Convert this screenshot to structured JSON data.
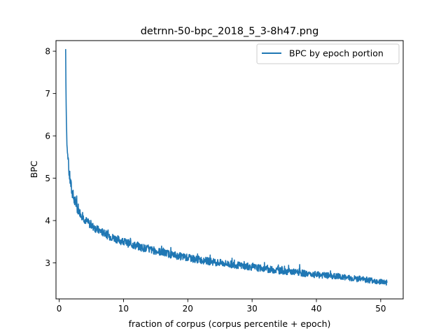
{
  "chart_data": {
    "type": "line",
    "title": "detrnn-50-bpc_2018_5_3-8h47.png",
    "xlabel": "fraction of corpus (corpus percentile + epoch)",
    "ylabel": "BPC",
    "xlim": [
      -0.5,
      53.5
    ],
    "ylim": [
      2.15,
      8.25
    ],
    "xticks": [
      0,
      10,
      20,
      30,
      40,
      50
    ],
    "yticks": [
      3,
      4,
      5,
      6,
      7,
      8
    ],
    "grid": false,
    "legend_position": "upper right",
    "series": [
      {
        "name": "BPC by epoch portion",
        "color": "#1f77b4",
        "x": [
          1.0,
          1.05,
          1.1,
          1.2,
          1.3,
          1.4,
          1.5,
          1.6,
          1.7,
          1.8,
          1.9,
          2.0,
          2.2,
          2.4,
          2.6,
          2.8,
          3.0,
          3.5,
          4.0,
          4.5,
          5.0,
          6.0,
          7.0,
          8.0,
          9.0,
          10.0,
          12.0,
          14.0,
          16.0,
          18.0,
          20.0,
          22.0,
          25.0,
          28.0,
          30.0,
          33.0,
          36.0,
          40.0,
          43.0,
          46.0,
          48.0,
          50.0,
          51.0
        ],
        "y": [
          8.05,
          7.1,
          6.5,
          5.8,
          5.55,
          5.35,
          5.2,
          5.05,
          4.95,
          4.85,
          4.75,
          4.65,
          4.55,
          4.45,
          4.38,
          4.32,
          4.25,
          4.12,
          4.02,
          3.95,
          3.88,
          3.78,
          3.7,
          3.62,
          3.56,
          3.5,
          3.4,
          3.32,
          3.25,
          3.18,
          3.12,
          3.07,
          3.0,
          2.94,
          2.9,
          2.84,
          2.79,
          2.72,
          2.68,
          2.63,
          2.6,
          2.56,
          2.54
        ]
      }
    ]
  }
}
